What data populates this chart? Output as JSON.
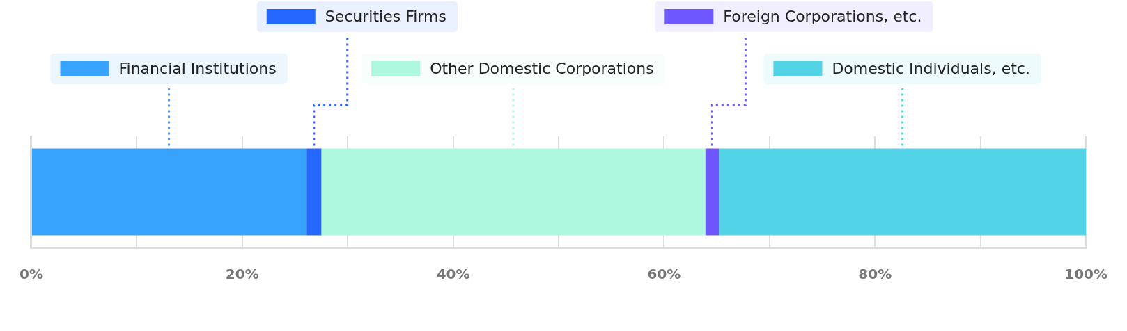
{
  "chart_data": {
    "type": "bar",
    "orientation": "horizontal",
    "stacked": true,
    "categories": [
      null
    ],
    "series": [
      {
        "name": "Financial Institutions",
        "color": "#38a3fc",
        "values": [
          26.1
        ]
      },
      {
        "name": "Securities Firms",
        "color": "#2667ff",
        "values": [
          1.4
        ]
      },
      {
        "name": "Other Domestic Corporations",
        "color": "#adf8de",
        "values": [
          36.4
        ]
      },
      {
        "name": "Foreign Corporations, etc.",
        "color": "#6e57ff",
        "values": [
          1.3
        ]
      },
      {
        "name": "Domestic Individuals, etc.",
        "color": "#52d3e6",
        "values": [
          34.8
        ]
      }
    ],
    "xlim": [
      0,
      100
    ],
    "xticks": [
      {
        "value": 0,
        "label": "0%"
      },
      {
        "value": 10,
        "label": null
      },
      {
        "value": 20,
        "label": "20%"
      },
      {
        "value": 30,
        "label": null
      },
      {
        "value": 40,
        "label": "40%"
      },
      {
        "value": 50,
        "label": null
      },
      {
        "value": 60,
        "label": "60%"
      },
      {
        "value": 70,
        "label": null
      },
      {
        "value": 80,
        "label": "80%"
      },
      {
        "value": 90,
        "label": null
      },
      {
        "value": 100,
        "label": "100%"
      }
    ],
    "grid": "x",
    "legend": "top"
  }
}
